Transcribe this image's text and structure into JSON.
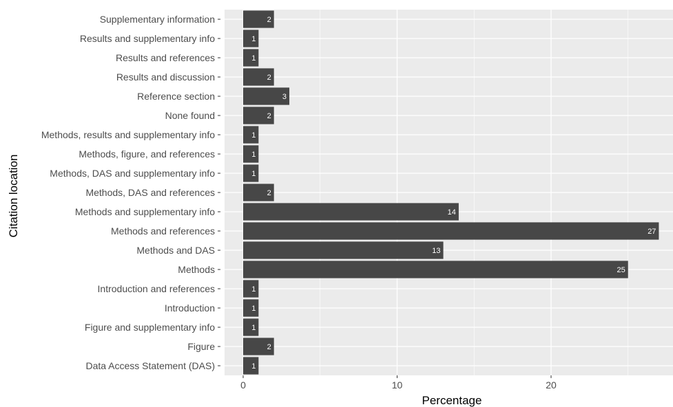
{
  "chart_data": {
    "type": "bar",
    "orientation": "horizontal",
    "xlabel": "Percentage",
    "ylabel": "Citation location",
    "xlim": [
      0,
      27.5
    ],
    "xticks": [
      0,
      10,
      20
    ],
    "grid": true,
    "colors": {
      "bar": "#474747",
      "panel": "#ebebeb",
      "grid": "#ffffff",
      "data_label": "#ffffff"
    },
    "categories": [
      "Supplementary information",
      "Results and supplementary info",
      "Results and references",
      "Results and discussion",
      "Reference section",
      "None found",
      "Methods, results and supplementary info",
      "Methods, figure, and references",
      "Methods, DAS and supplementary info",
      "Methods, DAS and references",
      "Methods and supplementary info",
      "Methods and references",
      "Methods and DAS",
      "Methods",
      "Introduction and references",
      "Introduction",
      "Figure and supplementary info",
      "Figure",
      "Data Access Statement (DAS)"
    ],
    "values": [
      2,
      1,
      1,
      2,
      3,
      2,
      1,
      1,
      1,
      2,
      14,
      27,
      13,
      25,
      1,
      1,
      1,
      2,
      1
    ]
  }
}
